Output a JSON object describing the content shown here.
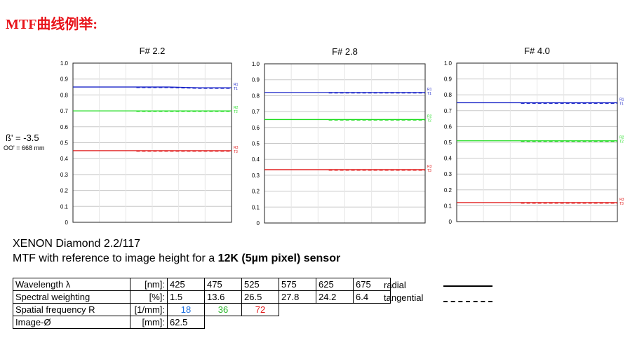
{
  "heading": "MTF曲线例举:",
  "beta": "ß' = -3.5",
  "oo": "OO' = 668 mm",
  "lens_name": "XENON Diamond 2.2/117",
  "lens_desc_prefix": "MTF with reference to image height for a ",
  "lens_desc_bold": "12K (5µm pixel) sensor",
  "table": {
    "wavelength": {
      "label": "Wavelength λ",
      "unit": "[nm]:",
      "values": [
        "425",
        "475",
        "525",
        "575",
        "625",
        "675"
      ]
    },
    "weighting": {
      "label": "Spectral weighting",
      "unit": "[%]:",
      "values": [
        "1.5",
        "13.6",
        "26.5",
        "27.8",
        "24.2",
        "6.4"
      ]
    },
    "frequency": {
      "label": "Spatial frequency R",
      "unit": "[1/mm]:",
      "values": [
        "18",
        "36",
        "72"
      ]
    },
    "image": {
      "label": "Image-Ø",
      "unit": "[mm]:",
      "value": "62.5"
    }
  },
  "legend": {
    "radial": "radial",
    "tangential": "tangential"
  },
  "colors": {
    "blue": "#1a25c8",
    "green": "#22dd22",
    "red": "#e01818",
    "freq_blue": "#1a6ee0",
    "freq_green": "#2ab52a",
    "freq_red": "#e01818"
  },
  "chart_data": [
    {
      "type": "line",
      "title": "F# 2.2",
      "ylim": [
        0,
        1.0
      ],
      "yticks": [
        "0",
        "0.1",
        "0.2",
        "0.3",
        "0.4",
        "0.5",
        "0.6",
        "0.7",
        "0.8",
        "0.9",
        "1.0"
      ],
      "grid": true,
      "series": [
        {
          "name": "R1",
          "color": "blue",
          "values": [
            0.85,
            0.85,
            0.85,
            0.85,
            0.845,
            0.845
          ]
        },
        {
          "name": "R2",
          "color": "green",
          "values": [
            0.7,
            0.7,
            0.7,
            0.7,
            0.7,
            0.7
          ]
        },
        {
          "name": "R3",
          "color": "red",
          "values": [
            0.45,
            0.45,
            0.45,
            0.45,
            0.45,
            0.45
          ]
        }
      ],
      "end_labels": [
        [
          "R1",
          "T1"
        ],
        [
          "R2",
          "T2"
        ],
        [
          "R3",
          "T3"
        ]
      ]
    },
    {
      "type": "line",
      "title": "F# 2.8",
      "ylim": [
        0,
        1.0
      ],
      "yticks": [
        "0",
        "0.1",
        "0.2",
        "0.3",
        "0.4",
        "0.5",
        "0.6",
        "0.7",
        "0.8",
        "0.9",
        "1.0"
      ],
      "grid": true,
      "series": [
        {
          "name": "R1",
          "color": "blue",
          "values": [
            0.82,
            0.82,
            0.82,
            0.82,
            0.82,
            0.82
          ]
        },
        {
          "name": "R2",
          "color": "green",
          "values": [
            0.65,
            0.65,
            0.65,
            0.65,
            0.65,
            0.65
          ]
        },
        {
          "name": "R3",
          "color": "red",
          "values": [
            0.335,
            0.335,
            0.335,
            0.335,
            0.335,
            0.335
          ]
        }
      ],
      "end_labels": [
        [
          "R1",
          "T1"
        ],
        [
          "R2",
          "T2"
        ],
        [
          "R3",
          "T3"
        ]
      ]
    },
    {
      "type": "line",
      "title": "F# 4.0",
      "ylim": [
        0,
        1.0
      ],
      "yticks": [
        "0",
        "0.1",
        "0.2",
        "0.3",
        "0.4",
        "0.5",
        "0.6",
        "0.7",
        "0.8",
        "0.9",
        "1.0"
      ],
      "grid": true,
      "series": [
        {
          "name": "R1",
          "color": "blue",
          "values": [
            0.75,
            0.75,
            0.75,
            0.75,
            0.75,
            0.75
          ]
        },
        {
          "name": "R2",
          "color": "green",
          "values": [
            0.51,
            0.51,
            0.51,
            0.51,
            0.51,
            0.51
          ]
        },
        {
          "name": "R3",
          "color": "red",
          "values": [
            0.12,
            0.12,
            0.12,
            0.12,
            0.12,
            0.12
          ]
        }
      ],
      "end_labels": [
        [
          "R1",
          "T1"
        ],
        [
          "R2",
          "T2"
        ],
        [
          "R3",
          "T3"
        ]
      ]
    }
  ]
}
